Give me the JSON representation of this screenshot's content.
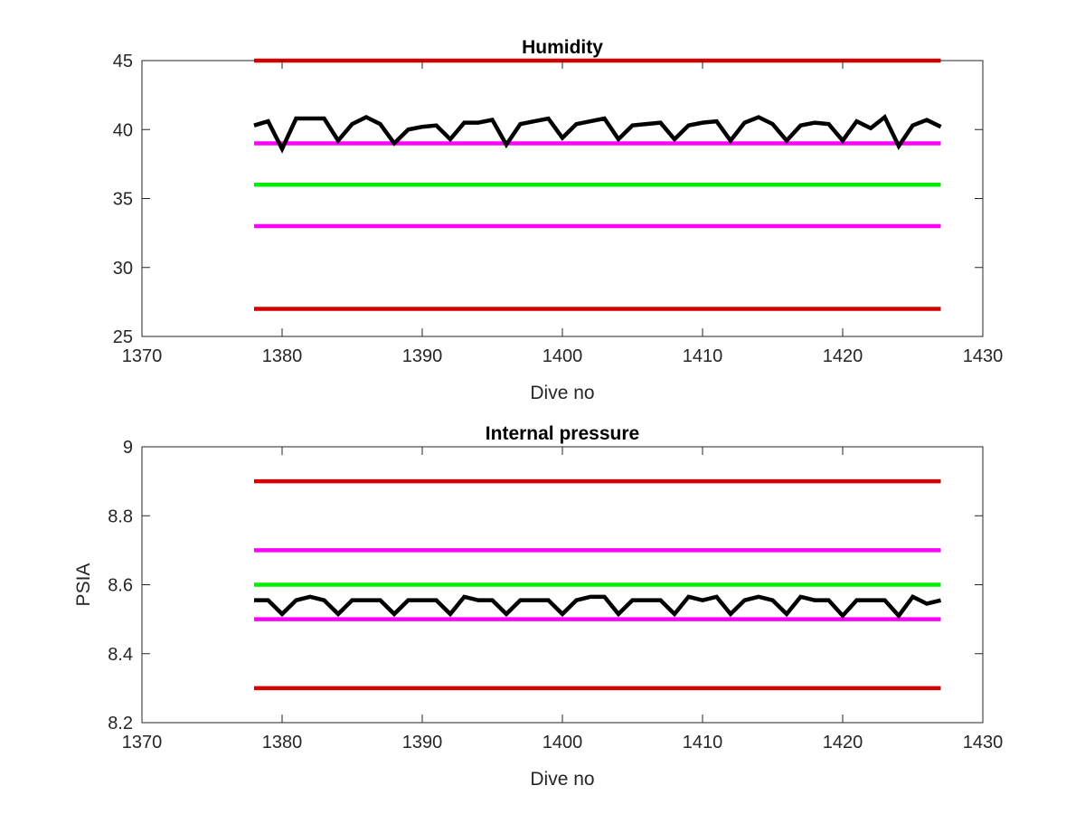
{
  "chart_data": [
    {
      "type": "line",
      "title": "Humidity",
      "xlabel": "Dive no",
      "ylabel": "",
      "xlim": [
        1370,
        1430
      ],
      "ylim": [
        25,
        45
      ],
      "xticks": [
        "1370",
        "1380",
        "1390",
        "1400",
        "1410",
        "1420",
        "1430"
      ],
      "yticks": [
        "25",
        "30",
        "35",
        "40",
        "45"
      ],
      "grid": false,
      "legend": "none",
      "series": [
        {
          "color": "#d40000",
          "x": [
            1378,
            1427
          ],
          "y": [
            45,
            45
          ]
        },
        {
          "color": "#d40000",
          "x": [
            1378,
            1427
          ],
          "y": [
            27,
            27
          ]
        },
        {
          "color": "#ff00ff",
          "x": [
            1378,
            1427
          ],
          "y": [
            39,
            39
          ]
        },
        {
          "color": "#ff00ff",
          "x": [
            1378,
            1427
          ],
          "y": [
            33,
            33
          ]
        },
        {
          "color": "#00ee00",
          "x": [
            1378,
            1427
          ],
          "y": [
            36,
            36
          ]
        },
        {
          "color": "#000000",
          "x": [
            1378,
            1379,
            1380,
            1381,
            1382,
            1383,
            1384,
            1385,
            1386,
            1387,
            1388,
            1389,
            1390,
            1391,
            1392,
            1393,
            1394,
            1395,
            1396,
            1397,
            1398,
            1399,
            1400,
            1401,
            1402,
            1403,
            1404,
            1405,
            1406,
            1407,
            1408,
            1409,
            1410,
            1411,
            1412,
            1413,
            1414,
            1415,
            1416,
            1417,
            1418,
            1419,
            1420,
            1421,
            1422,
            1423,
            1424,
            1425,
            1426,
            1427
          ],
          "y": [
            40.3,
            40.6,
            38.6,
            40.8,
            40.8,
            40.8,
            39.2,
            40.4,
            40.9,
            40.4,
            39,
            40,
            40.2,
            40.3,
            39.3,
            40.5,
            40.5,
            40.7,
            38.9,
            40.4,
            40.6,
            40.8,
            39.4,
            40.4,
            40.6,
            40.8,
            39.3,
            40.3,
            40.4,
            40.5,
            39.3,
            40.3,
            40.5,
            40.6,
            39.2,
            40.5,
            40.9,
            40.4,
            39.2,
            40.3,
            40.5,
            40.4,
            39.2,
            40.6,
            40.1,
            40.9,
            38.8,
            40.3,
            40.7,
            40.2
          ]
        }
      ]
    },
    {
      "type": "line",
      "title": "Internal pressure",
      "xlabel": "Dive no",
      "ylabel": "PSIA",
      "xlim": [
        1370,
        1430
      ],
      "ylim": [
        8.2,
        9
      ],
      "xticks": [
        "1370",
        "1380",
        "1390",
        "1400",
        "1410",
        "1420",
        "1430"
      ],
      "yticks": [
        "8.2",
        "8.4",
        "8.6",
        "8.8",
        "9"
      ],
      "grid": false,
      "legend": "none",
      "series": [
        {
          "color": "#d40000",
          "x": [
            1378,
            1427
          ],
          "y": [
            8.9,
            8.9
          ]
        },
        {
          "color": "#d40000",
          "x": [
            1378,
            1427
          ],
          "y": [
            8.3,
            8.3
          ]
        },
        {
          "color": "#ff00ff",
          "x": [
            1378,
            1427
          ],
          "y": [
            8.7,
            8.7
          ]
        },
        {
          "color": "#ff00ff",
          "x": [
            1378,
            1427
          ],
          "y": [
            8.5,
            8.5
          ]
        },
        {
          "color": "#00ee00",
          "x": [
            1378,
            1427
          ],
          "y": [
            8.6,
            8.6
          ]
        },
        {
          "color": "#000000",
          "x": [
            1378,
            1379,
            1380,
            1381,
            1382,
            1383,
            1384,
            1385,
            1386,
            1387,
            1388,
            1389,
            1390,
            1391,
            1392,
            1393,
            1394,
            1395,
            1396,
            1397,
            1398,
            1399,
            1400,
            1401,
            1402,
            1403,
            1404,
            1405,
            1406,
            1407,
            1408,
            1409,
            1410,
            1411,
            1412,
            1413,
            1414,
            1415,
            1416,
            1417,
            1418,
            1419,
            1420,
            1421,
            1422,
            1423,
            1424,
            1425,
            1426,
            1427
          ],
          "y": [
            8.555,
            8.555,
            8.515,
            8.555,
            8.565,
            8.555,
            8.515,
            8.555,
            8.555,
            8.555,
            8.515,
            8.555,
            8.555,
            8.555,
            8.515,
            8.565,
            8.555,
            8.555,
            8.515,
            8.555,
            8.555,
            8.555,
            8.515,
            8.555,
            8.565,
            8.565,
            8.515,
            8.555,
            8.555,
            8.555,
            8.515,
            8.565,
            8.555,
            8.565,
            8.515,
            8.555,
            8.565,
            8.555,
            8.515,
            8.565,
            8.555,
            8.555,
            8.51,
            8.555,
            8.555,
            8.555,
            8.51,
            8.565,
            8.545,
            8.555
          ]
        }
      ]
    }
  ]
}
